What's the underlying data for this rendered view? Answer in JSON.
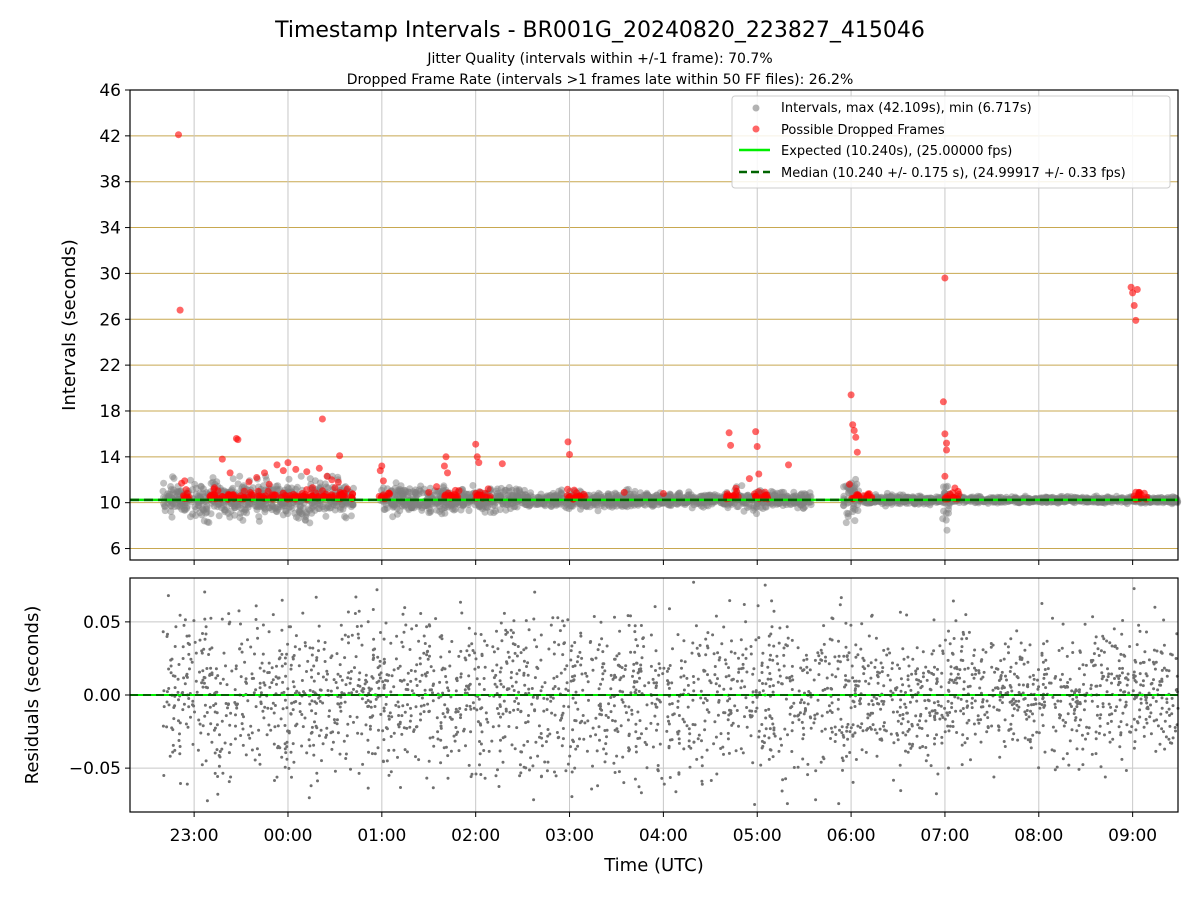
{
  "figure": {
    "title": "Timestamp Intervals - BR001G_20240820_223827_415046",
    "subtitle_1": "Jitter Quality (intervals within +/-1 frame): 70.7%",
    "subtitle_2": "Dropped Frame Rate (intervals >1 frames late within 50 FF files): 26.2%"
  },
  "colors": {
    "intervals": "#808080",
    "dropped": "#ff0000",
    "expected": "#00ee00",
    "median": "#006400",
    "hgrid_top": "#c8a850",
    "grid": "#c8c8c8",
    "residuals": "#707070"
  },
  "chart_data": [
    {
      "type": "scatter",
      "id": "intervals",
      "ylabel": "Intervals (seconds)",
      "xlabel": "",
      "xlim": [
        "22:19",
        "09:29"
      ],
      "ylim": [
        5,
        46
      ],
      "y_ticks": [
        6,
        10,
        14,
        18,
        22,
        26,
        30,
        34,
        38,
        42,
        46
      ],
      "x_ticks": [
        "23:00",
        "00:00",
        "01:00",
        "02:00",
        "03:00",
        "04:00",
        "05:00",
        "06:00",
        "07:00",
        "08:00",
        "09:00"
      ],
      "grid": "on",
      "legend_position": "top-right",
      "legend": [
        "Intervals, max (42.109s), min (6.717s)",
        "Possible Dropped Frames",
        "Expected (10.240s), (25.00000 fps)",
        "Median (10.240 +/- 0.175 s), (24.99917 +/- 0.33 fps)"
      ],
      "expected_interval": 10.24,
      "median_interval": 10.24,
      "series": [
        {
          "name": "Intervals, max (42.109s), min (6.717s)",
          "note": "dense band of ~3900 gray points between ~8.5 and ~12 s along the full time range"
        },
        {
          "name": "Possible Dropped Frames",
          "points": [
            {
              "x": "22:50",
              "y": 42.1
            },
            {
              "x": "22:51",
              "y": 26.8
            },
            {
              "x": "22:52",
              "y": 11.7
            },
            {
              "x": "22:54",
              "y": 11.9
            },
            {
              "x": "23:13",
              "y": 11.3
            },
            {
              "x": "23:18",
              "y": 13.8
            },
            {
              "x": "23:23",
              "y": 12.6
            },
            {
              "x": "23:27",
              "y": 15.6
            },
            {
              "x": "23:28",
              "y": 15.5
            },
            {
              "x": "23:35",
              "y": 11.8
            },
            {
              "x": "23:40",
              "y": 12.2
            },
            {
              "x": "23:45",
              "y": 12.6
            },
            {
              "x": "23:48",
              "y": 11.6
            },
            {
              "x": "23:53",
              "y": 13.3
            },
            {
              "x": "23:57",
              "y": 12.8
            },
            {
              "x": "24:00",
              "y": 13.5
            },
            {
              "x": "24:05",
              "y": 12.9
            },
            {
              "x": "24:12",
              "y": 12.7
            },
            {
              "x": "24:20",
              "y": 13.0
            },
            {
              "x": "24:22",
              "y": 17.3
            },
            {
              "x": "24:25",
              "y": 12.3
            },
            {
              "x": "24:28",
              "y": 12.0
            },
            {
              "x": "24:30",
              "y": 11.3
            },
            {
              "x": "24:33",
              "y": 14.1
            },
            {
              "x": "24:38",
              "y": 11.2
            },
            {
              "x": "24:59",
              "y": 12.8
            },
            {
              "x": "25:00",
              "y": 13.2
            },
            {
              "x": "25:01",
              "y": 11.9
            },
            {
              "x": "25:30",
              "y": 10.9
            },
            {
              "x": "25:35",
              "y": 11.4
            },
            {
              "x": "25:40",
              "y": 13.2
            },
            {
              "x": "25:41",
              "y": 14.0
            },
            {
              "x": "25:42",
              "y": 12.6
            },
            {
              "x": "26:00",
              "y": 15.1
            },
            {
              "x": "26:01",
              "y": 14.0
            },
            {
              "x": "26:02",
              "y": 13.5
            },
            {
              "x": "26:08",
              "y": 11.2
            },
            {
              "x": "26:17",
              "y": 13.4
            },
            {
              "x": "26:59",
              "y": 15.3
            },
            {
              "x": "27:00",
              "y": 14.2
            },
            {
              "x": "27:03",
              "y": 11.1
            },
            {
              "x": "27:35",
              "y": 10.9
            },
            {
              "x": "28:00",
              "y": 10.8
            },
            {
              "x": "28:42",
              "y": 16.1
            },
            {
              "x": "28:43",
              "y": 15.0
            },
            {
              "x": "28:55",
              "y": 12.1
            },
            {
              "x": "28:59",
              "y": 16.2
            },
            {
              "x": "29:00",
              "y": 14.9
            },
            {
              "x": "29:01",
              "y": 12.5
            },
            {
              "x": "29:20",
              "y": 13.3
            },
            {
              "x": "29:59",
              "y": 11.6
            },
            {
              "x": "30:00",
              "y": 19.4
            },
            {
              "x": "30:01",
              "y": 16.8
            },
            {
              "x": "30:02",
              "y": 16.3
            },
            {
              "x": "30:03",
              "y": 15.7
            },
            {
              "x": "30:04",
              "y": 14.4
            },
            {
              "x": "30:59",
              "y": 18.8
            },
            {
              "x": "31:00",
              "y": 16.0
            },
            {
              "x": "31:01",
              "y": 15.2
            },
            {
              "x": "31:00",
              "y": 29.6
            },
            {
              "x": "31:01",
              "y": 14.6
            },
            {
              "x": "31:00",
              "y": 12.3
            },
            {
              "x": "32:59",
              "y": 28.8
            },
            {
              "x": "33:00",
              "y": 28.3
            },
            {
              "x": "33:01",
              "y": 27.2
            },
            {
              "x": "33:02",
              "y": 25.9
            },
            {
              "x": "33:03",
              "y": 28.6
            },
            {
              "x": "33:04",
              "y": 10.9
            }
          ]
        }
      ]
    },
    {
      "type": "scatter",
      "id": "residuals",
      "ylabel": "Residuals (seconds)",
      "xlabel": "Time (UTC)",
      "ylim": [
        -0.08,
        0.08
      ],
      "y_ticks": [
        -0.05,
        0.0,
        0.05
      ],
      "y_tick_labels": [
        "−0.05",
        "0.00",
        "0.05"
      ],
      "x_ticks": [
        "23:00",
        "00:00",
        "01:00",
        "02:00",
        "03:00",
        "04:00",
        "05:00",
        "06:00",
        "07:00",
        "08:00",
        "09:00"
      ],
      "grid": "on",
      "series": [
        {
          "name": "",
          "note": "~3500 gray residual points spread between -0.08 and 0.08 s, centered on 0"
        }
      ]
    }
  ]
}
